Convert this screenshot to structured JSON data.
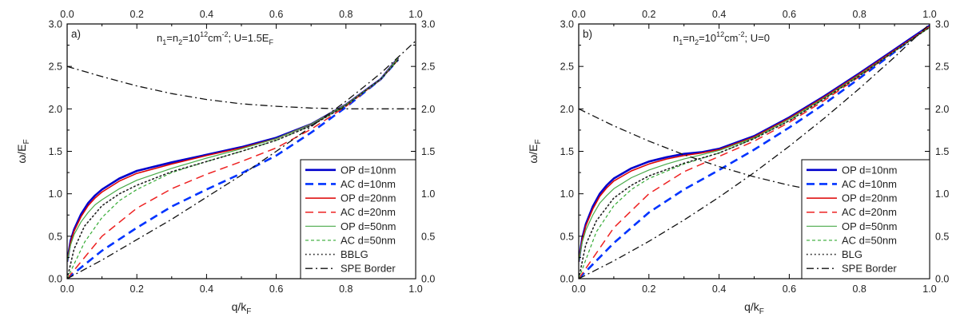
{
  "chart_data": [
    {
      "type": "line",
      "panel_label": "a)",
      "annotation": {
        "n1": "n",
        "sub1": "1",
        "eq1": "=n",
        "sub2": "2",
        "eq2": "=10",
        "sup1": "12",
        "unit": "cm",
        "sup2": "-2",
        "rest": "; U=1.5E",
        "sub3": "F"
      },
      "xlabel": {
        "main": "q/k",
        "sub": "F"
      },
      "ylabel": {
        "main": "ω/E",
        "sub": "F"
      },
      "xlim": [
        0,
        1
      ],
      "ylim": [
        0,
        3
      ],
      "xticks": [
        "0.0",
        "0.2",
        "0.4",
        "0.6",
        "0.8",
        "1.0"
      ],
      "yticks": [
        "0.0",
        "0.5",
        "1.0",
        "1.5",
        "2.0",
        "2.5",
        "3.0"
      ],
      "grid": false,
      "legend_position": "right",
      "series": [
        {
          "name": "OP d=10nm",
          "color": "#0000cc",
          "style": "solid",
          "width": 2.6,
          "x": [
            0,
            0.01,
            0.02,
            0.04,
            0.06,
            0.08,
            0.1,
            0.15,
            0.2,
            0.3,
            0.4,
            0.5,
            0.6,
            0.7,
            0.8,
            0.9,
            0.95
          ],
          "y": [
            0.2,
            0.45,
            0.58,
            0.76,
            0.89,
            0.98,
            1.05,
            1.18,
            1.27,
            1.37,
            1.46,
            1.55,
            1.66,
            1.82,
            2.05,
            2.35,
            2.6
          ]
        },
        {
          "name": "AC d=10nm",
          "color": "#0033ff",
          "style": "dash",
          "width": 2.6,
          "x": [
            0,
            0.1,
            0.2,
            0.3,
            0.4,
            0.5,
            0.6,
            0.7,
            0.8,
            0.9,
            0.95
          ],
          "y": [
            0,
            0.33,
            0.6,
            0.85,
            1.05,
            1.24,
            1.45,
            1.72,
            2.02,
            2.35,
            2.58
          ]
        },
        {
          "name": "OP d=20nm",
          "color": "#dd0000",
          "style": "solid",
          "width": 1.5,
          "x": [
            0,
            0.01,
            0.02,
            0.04,
            0.06,
            0.08,
            0.1,
            0.15,
            0.2,
            0.3,
            0.4,
            0.5,
            0.6,
            0.7,
            0.8,
            0.9,
            0.95
          ],
          "y": [
            0.2,
            0.43,
            0.56,
            0.73,
            0.86,
            0.95,
            1.02,
            1.15,
            1.24,
            1.35,
            1.45,
            1.54,
            1.65,
            1.82,
            2.05,
            2.35,
            2.6
          ]
        },
        {
          "name": "AC d=20nm",
          "color": "#ee2222",
          "style": "dash",
          "width": 1.5,
          "x": [
            0,
            0.1,
            0.2,
            0.3,
            0.4,
            0.5,
            0.6,
            0.7,
            0.8,
            0.9,
            0.95
          ],
          "y": [
            0,
            0.5,
            0.83,
            1.06,
            1.23,
            1.38,
            1.54,
            1.76,
            2.03,
            2.35,
            2.58
          ]
        },
        {
          "name": "OP d=50nm",
          "color": "#4aaa4a",
          "style": "solid",
          "width": 1.2,
          "x": [
            0,
            0.01,
            0.02,
            0.04,
            0.06,
            0.08,
            0.1,
            0.15,
            0.2,
            0.3,
            0.4,
            0.5,
            0.6,
            0.7,
            0.8,
            0.9,
            0.95
          ],
          "y": [
            0.2,
            0.4,
            0.52,
            0.67,
            0.78,
            0.87,
            0.93,
            1.06,
            1.16,
            1.3,
            1.42,
            1.53,
            1.65,
            1.82,
            2.05,
            2.35,
            2.6
          ]
        },
        {
          "name": "AC d=50nm",
          "color": "#33aa33",
          "style": "shortdash",
          "width": 1.2,
          "x": [
            0,
            0.05,
            0.1,
            0.15,
            0.2,
            0.3,
            0.4,
            0.5,
            0.6,
            0.7,
            0.8,
            0.9,
            0.95
          ],
          "y": [
            0,
            0.43,
            0.72,
            0.92,
            1.05,
            1.25,
            1.38,
            1.5,
            1.63,
            1.8,
            2.04,
            2.35,
            2.58
          ]
        },
        {
          "name": "BBLG",
          "color": "#222222",
          "style": "dot",
          "width": 1.6,
          "x": [
            0,
            0.02,
            0.05,
            0.1,
            0.15,
            0.2,
            0.3,
            0.4,
            0.5,
            0.6,
            0.7,
            0.8,
            0.9,
            0.95
          ],
          "y": [
            0,
            0.35,
            0.62,
            0.86,
            1.0,
            1.1,
            1.26,
            1.38,
            1.5,
            1.63,
            1.8,
            2.04,
            2.35,
            2.58
          ]
        },
        {
          "name": "SPE Border",
          "color": "#111111",
          "style": "dashdot",
          "width": 1.3,
          "x": [
            0,
            0.1,
            0.2,
            0.3,
            0.4,
            0.5,
            0.6,
            0.7,
            0.8,
            0.9,
            1.0
          ],
          "y": [
            0,
            0.22,
            0.46,
            0.7,
            0.96,
            1.22,
            1.5,
            1.79,
            2.09,
            2.42,
            2.8
          ]
        },
        {
          "name": "",
          "color": "#111111",
          "style": "dashdot",
          "width": 1.3,
          "x": [
            0,
            0.1,
            0.2,
            0.3,
            0.4,
            0.5,
            0.6,
            0.7,
            0.8,
            0.9,
            1.0
          ],
          "y": [
            2.5,
            2.38,
            2.27,
            2.18,
            2.11,
            2.06,
            2.03,
            2.01,
            2.0,
            2.0,
            2.0
          ]
        }
      ]
    },
    {
      "type": "line",
      "panel_label": "b)",
      "annotation": {
        "n1": "n",
        "sub1": "1",
        "eq1": "=n",
        "sub2": "2",
        "eq2": "=10",
        "sup1": "12",
        "unit": "cm",
        "sup2": "-2",
        "rest": "; U=0",
        "sub3": ""
      },
      "xlabel": {
        "main": "q/k",
        "sub": "F"
      },
      "ylabel": {
        "main": "ω/E",
        "sub": "F"
      },
      "xlim": [
        0,
        1
      ],
      "ylim": [
        0,
        3
      ],
      "xticks": [
        "0.0",
        "0.2",
        "0.4",
        "0.6",
        "0.8",
        "1.0"
      ],
      "yticks": [
        "0.0",
        "0.5",
        "1.0",
        "1.5",
        "2.0",
        "2.5",
        "3.0"
      ],
      "grid": false,
      "legend_position": "bottom-right",
      "series": [
        {
          "name": "OP d=10nm",
          "color": "#0000cc",
          "style": "solid",
          "width": 2.6,
          "x": [
            0,
            0.01,
            0.02,
            0.04,
            0.06,
            0.08,
            0.1,
            0.15,
            0.2,
            0.25,
            0.3,
            0.35,
            0.4,
            0.5,
            0.6,
            0.7,
            0.8,
            0.9,
            1.0
          ],
          "y": [
            0.2,
            0.48,
            0.64,
            0.85,
            1.0,
            1.1,
            1.18,
            1.3,
            1.38,
            1.43,
            1.47,
            1.49,
            1.53,
            1.68,
            1.9,
            2.15,
            2.42,
            2.7,
            2.98
          ]
        },
        {
          "name": "AC d=10nm",
          "color": "#0033ff",
          "style": "dash",
          "width": 2.6,
          "x": [
            0,
            0.1,
            0.2,
            0.3,
            0.4,
            0.5,
            0.6,
            0.7,
            0.8,
            0.9,
            1.0
          ],
          "y": [
            0,
            0.42,
            0.78,
            1.05,
            1.28,
            1.52,
            1.78,
            2.06,
            2.36,
            2.67,
            2.98
          ]
        },
        {
          "name": "OP d=20nm",
          "color": "#dd0000",
          "style": "solid",
          "width": 1.5,
          "x": [
            0,
            0.01,
            0.02,
            0.04,
            0.06,
            0.08,
            0.1,
            0.15,
            0.2,
            0.25,
            0.3,
            0.35,
            0.4,
            0.5,
            0.6,
            0.7,
            0.8,
            0.9,
            1.0
          ],
          "y": [
            0.2,
            0.46,
            0.62,
            0.82,
            0.97,
            1.07,
            1.15,
            1.27,
            1.35,
            1.41,
            1.45,
            1.48,
            1.52,
            1.67,
            1.89,
            2.14,
            2.41,
            2.69,
            2.97
          ]
        },
        {
          "name": "AC d=20nm",
          "color": "#ee2222",
          "style": "dash",
          "width": 1.5,
          "x": [
            0,
            0.1,
            0.2,
            0.3,
            0.4,
            0.5,
            0.6,
            0.7,
            0.8,
            0.9,
            1.0
          ],
          "y": [
            0,
            0.6,
            1.0,
            1.26,
            1.44,
            1.62,
            1.84,
            2.1,
            2.38,
            2.68,
            2.97
          ]
        },
        {
          "name": "OP d=50nm",
          "color": "#4aaa4a",
          "style": "solid",
          "width": 1.2,
          "x": [
            0,
            0.01,
            0.02,
            0.04,
            0.06,
            0.08,
            0.1,
            0.15,
            0.2,
            0.25,
            0.3,
            0.35,
            0.4,
            0.5,
            0.6,
            0.7,
            0.8,
            0.9,
            1.0
          ],
          "y": [
            0.2,
            0.43,
            0.57,
            0.75,
            0.89,
            0.98,
            1.06,
            1.19,
            1.28,
            1.35,
            1.41,
            1.46,
            1.51,
            1.66,
            1.88,
            2.13,
            2.4,
            2.68,
            2.96
          ]
        },
        {
          "name": "AC d=50nm",
          "color": "#33aa33",
          "style": "shortdash",
          "width": 1.2,
          "x": [
            0,
            0.05,
            0.1,
            0.15,
            0.2,
            0.3,
            0.4,
            0.5,
            0.6,
            0.7,
            0.8,
            0.9,
            1.0
          ],
          "y": [
            0,
            0.55,
            0.86,
            1.05,
            1.18,
            1.35,
            1.48,
            1.65,
            1.86,
            2.12,
            2.39,
            2.68,
            2.96
          ]
        },
        {
          "name": "BLG",
          "color": "#222222",
          "style": "dot",
          "width": 1.6,
          "x": [
            0,
            0.02,
            0.05,
            0.1,
            0.15,
            0.2,
            0.3,
            0.4,
            0.5,
            0.6,
            0.7,
            0.8,
            0.9,
            1.0
          ],
          "y": [
            0,
            0.4,
            0.68,
            0.95,
            1.1,
            1.21,
            1.36,
            1.48,
            1.65,
            1.86,
            2.12,
            2.39,
            2.68,
            2.96
          ]
        },
        {
          "name": "SPE Border",
          "color": "#111111",
          "style": "dashdot",
          "width": 1.3,
          "x": [
            0,
            0.1,
            0.2,
            0.3,
            0.4,
            0.5,
            0.6,
            0.7,
            0.8,
            0.9,
            1.0
          ],
          "y": [
            0,
            0.21,
            0.44,
            0.69,
            0.96,
            1.25,
            1.56,
            1.89,
            2.24,
            2.61,
            3.0
          ]
        },
        {
          "name": "",
          "color": "#111111",
          "style": "dashdot",
          "width": 1.3,
          "x": [
            0,
            0.1,
            0.2,
            0.3,
            0.4,
            0.5,
            0.6,
            0.7,
            0.8
          ],
          "y": [
            2.0,
            1.8,
            1.62,
            1.46,
            1.32,
            1.2,
            1.1,
            1.02,
            1.0
          ]
        }
      ]
    }
  ]
}
